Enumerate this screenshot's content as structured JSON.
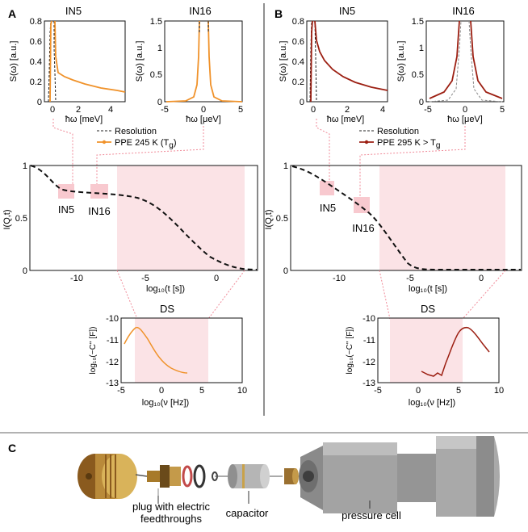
{
  "panels": {
    "A": {
      "letter": "A",
      "in5": {
        "title": "IN5",
        "ylabel": "S(ω) [a.u.]",
        "xlabel": "ħω [meV]",
        "yticks": [
          "0",
          "0.2",
          "0.4",
          "0.6",
          "0.8"
        ],
        "xticks": [
          "0",
          "2",
          "4"
        ]
      },
      "in16": {
        "title": "IN16",
        "ylabel": "S(ω) [a.u.]",
        "xlabel": "ħω [μeV]",
        "yticks": [
          "0",
          "0.5",
          "1",
          "1.5"
        ],
        "xticks": [
          "-5",
          "0",
          "5"
        ]
      },
      "legend": {
        "resolution": "Resolution",
        "sample": "PPE 245 K (T",
        "sample_sub": "g",
        "sample_end": ")"
      },
      "main": {
        "ylabel": "I(Q,t)",
        "xlabel": "log₁₀(t [s])",
        "yticks": [
          "0",
          "0.5",
          "1"
        ],
        "xticks": [
          "-10",
          "-5",
          "0"
        ],
        "label_in5": "IN5",
        "label_in16": "IN16"
      },
      "ds": {
        "title": "DS",
        "ylabel": "log₁₀(−C'' [F])",
        "xlabel": "log₁₀(ν [Hz])",
        "yticks": [
          "-10",
          "-11",
          "-12",
          "-13"
        ],
        "xticks": [
          "-5",
          "0",
          "5",
          "10"
        ]
      }
    },
    "B": {
      "letter": "B",
      "in5": {
        "title": "IN5",
        "ylabel": "S(ω) [a.u.]",
        "xlabel": "ħω [meV]",
        "yticks": [
          "0",
          "0.2",
          "0.4",
          "0.6",
          "0.8"
        ],
        "xticks": [
          "0",
          "2",
          "4"
        ]
      },
      "in16": {
        "title": "IN16",
        "ylabel": "S(ω) [a.u.]",
        "xlabel": "ħω [μeV]",
        "yticks": [
          "0",
          "0.5",
          "1",
          "1.5"
        ],
        "xticks": [
          "-5",
          "0",
          "5"
        ]
      },
      "legend": {
        "resolution": "Resolution",
        "sample": "PPE 295 K > T",
        "sample_sub": "g",
        "sample_end": ""
      },
      "main": {
        "ylabel": "I(Q,t)",
        "xlabel": "log₁₀(t [s])",
        "yticks": [
          "0",
          "0.5",
          "1"
        ],
        "xticks": [
          "-10",
          "-5",
          "0"
        ],
        "label_in5": "IN5",
        "label_in16": "IN16"
      },
      "ds": {
        "title": "DS",
        "ylabel": "log₁₀(−C'' [F])",
        "xlabel": "log₁₀(ν [Hz])",
        "yticks": [
          "-10",
          "-11",
          "-12",
          "-13"
        ],
        "xticks": [
          "-5",
          "0",
          "5",
          "10"
        ]
      }
    },
    "C": {
      "letter": "C",
      "label_plug_1": "plug with electric",
      "label_plug_2": "feedthroughs",
      "label_capacitor": "capacitor",
      "label_cell": "pressure cell"
    }
  },
  "colors": {
    "orange": "#f0922a",
    "darkred": "#9c1f12",
    "pink": "#fbe3e6",
    "pinkline": "#f08a98"
  }
}
